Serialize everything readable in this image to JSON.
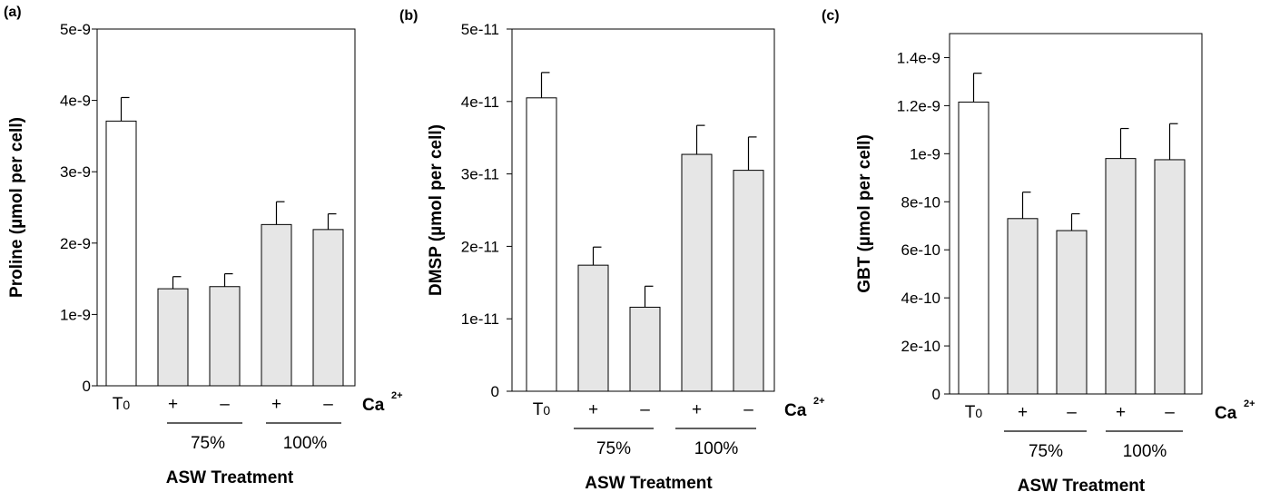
{
  "figure": {
    "x_axis_title": "ASW Treatment",
    "ion_label": "Ca",
    "ion_superscript": "2+",
    "category_labels": [
      "T0",
      "+",
      "–",
      "+",
      "–"
    ],
    "group_labels": [
      "75%",
      "100%"
    ]
  },
  "colors": {
    "control_bar": "#ffffff",
    "treatment_bar": "#e6e6e6",
    "axis": "#000000"
  },
  "chart_data": [
    {
      "type": "bar",
      "panel": "(a)",
      "ylabel": "Proline  (µmol per cell)",
      "xlabel": "ASW Treatment",
      "categories": [
        "T0",
        "75% Ca2+ +",
        "75% Ca2+ –",
        "100% Ca2+ +",
        "100% Ca2+ –"
      ],
      "values": [
        3.71e-09,
        1.36e-09,
        1.39e-09,
        2.26e-09,
        2.19e-09
      ],
      "errors": [
        3.3e-10,
        1.7e-10,
        1.8e-10,
        3.2e-10,
        2.2e-10
      ],
      "ylim": [
        0,
        5e-09
      ],
      "yticks": [
        0,
        1e-09,
        2e-09,
        3e-09,
        4e-09,
        5e-09
      ],
      "ytick_labels": [
        "0",
        "1e-9",
        "2e-9",
        "3e-9",
        "4e-9",
        "5e-9"
      ]
    },
    {
      "type": "bar",
      "panel": "(b)",
      "ylabel": "DMSP (µmol per cell)",
      "xlabel": "ASW Treatment",
      "categories": [
        "T0",
        "75% Ca2+ +",
        "75% Ca2+ –",
        "100% Ca2+ +",
        "100% Ca2+ –"
      ],
      "values": [
        4.05e-11,
        1.74e-11,
        1.16e-11,
        3.27e-11,
        3.05e-11
      ],
      "errors": [
        3.5e-12,
        2.5e-12,
        2.9e-12,
        4e-12,
        4.6e-12
      ],
      "ylim": [
        0,
        5e-11
      ],
      "yticks": [
        0,
        1e-11,
        2e-11,
        3e-11,
        4e-11,
        5e-11
      ],
      "ytick_labels": [
        "0",
        "1e-11",
        "2e-11",
        "3e-11",
        "4e-11",
        "5e-11"
      ]
    },
    {
      "type": "bar",
      "panel": "(c)",
      "ylabel": "GBT (µmol per cell)",
      "xlabel": "ASW Treatment",
      "categories": [
        "T0",
        "75% Ca2+ +",
        "75% Ca2+ –",
        "100% Ca2+ +",
        "100% Ca2+ –"
      ],
      "values": [
        1.215e-09,
        7.3e-10,
        6.8e-10,
        9.8e-10,
        9.75e-10
      ],
      "errors": [
        1.2e-10,
        1.1e-10,
        7e-11,
        1.25e-10,
        1.5e-10
      ],
      "ylim": [
        0,
        1.5e-09
      ],
      "yticks": [
        0,
        2e-10,
        4e-10,
        6e-10,
        8e-10,
        1e-09,
        1.2e-09,
        1.4e-09
      ],
      "ytick_labels": [
        "0",
        "2e-10",
        "4e-10",
        "6e-10",
        "8e-10",
        "1e-9",
        "1.2e-9",
        "1.4e-9"
      ]
    }
  ]
}
